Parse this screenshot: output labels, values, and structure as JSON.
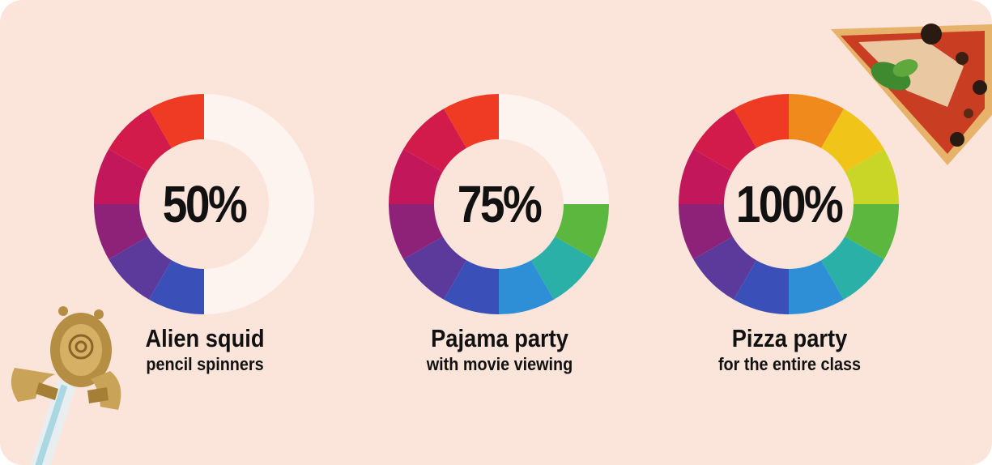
{
  "chart_data": {
    "type": "donut",
    "colors": {
      "background": "#fbe4da",
      "track": "#fdf3ef",
      "spectrum": [
        "#ef3b24",
        "#d21b4a",
        "#c2185b",
        "#8e2178",
        "#5b3a9b",
        "#3b4fb8",
        "#2e8fd6",
        "#2bb0a8",
        "#5cb73f",
        "#c9d627",
        "#f0c418",
        "#f08a1c"
      ]
    },
    "items": [
      {
        "value": 50,
        "max": 100,
        "label": "50%",
        "title": "Alien squid",
        "subtitle": "pencil spinners"
      },
      {
        "value": 75,
        "max": 100,
        "label": "75%",
        "title": "Pajama party",
        "subtitle": "with movie viewing"
      },
      {
        "value": 100,
        "max": 100,
        "label": "100%",
        "title": "Pizza party",
        "subtitle": "for the entire class"
      }
    ]
  },
  "decorations": {
    "top_right": "pizza-slice-icon",
    "bottom_left": "alien-squid-pencil-spinner-icon"
  }
}
